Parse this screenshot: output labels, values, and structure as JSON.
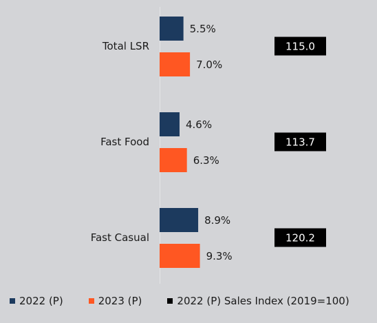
{
  "chart_data": {
    "type": "bar",
    "orientation": "horizontal",
    "categories": [
      "Total LSR",
      "Fast Food",
      "Fast Casual"
    ],
    "series": [
      {
        "name": "2022 (P)",
        "values": [
          5.5,
          4.6,
          8.9
        ],
        "labels": [
          "5.5%",
          "4.6%",
          "8.9%"
        ],
        "color": "#1c3a5e"
      },
      {
        "name": "2023 (P)",
        "values": [
          7.0,
          6.3,
          9.3
        ],
        "labels": [
          "7.0%",
          "6.3%",
          "9.3%"
        ],
        "color": "#ff5722"
      }
    ],
    "index_series": {
      "name": "2022 (P) Sales Index (2019=100)",
      "values": [
        115.0,
        113.7,
        120.2
      ],
      "labels": [
        "115.0",
        "113.7",
        "120.2"
      ],
      "color": "#000000"
    },
    "legend": "bottom"
  }
}
